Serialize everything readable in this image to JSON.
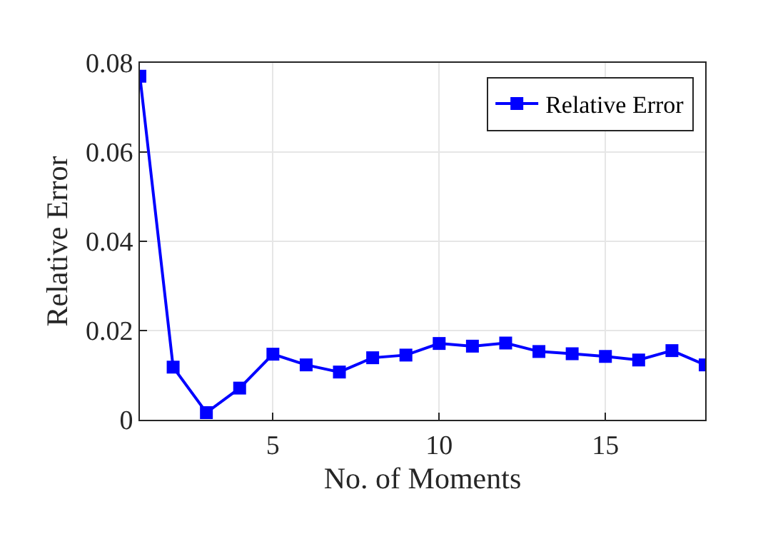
{
  "chart_data": {
    "type": "line",
    "xlabel": "No. of Moments",
    "ylabel": "Relative Error",
    "x": [
      1,
      2,
      3,
      4,
      5,
      6,
      7,
      8,
      9,
      10,
      11,
      12,
      13,
      14,
      15,
      16,
      17,
      18
    ],
    "series": [
      {
        "name": "Relative Error",
        "color": "#0000ff",
        "values": [
          0.077,
          0.0118,
          0.0016,
          0.0071,
          0.0147,
          0.0123,
          0.0107,
          0.0139,
          0.0145,
          0.0171,
          0.0165,
          0.0172,
          0.0153,
          0.0148,
          0.0142,
          0.0134,
          0.0155,
          0.0123
        ]
      }
    ],
    "xlim": [
      1,
      18
    ],
    "xticks": [
      5,
      10,
      15
    ],
    "ylim": [
      0,
      0.08
    ],
    "yticks": [
      0,
      0.02,
      0.04,
      0.06,
      0.08
    ],
    "grid": true,
    "legend": "top right",
    "marker": "square",
    "line_style": "solid"
  }
}
